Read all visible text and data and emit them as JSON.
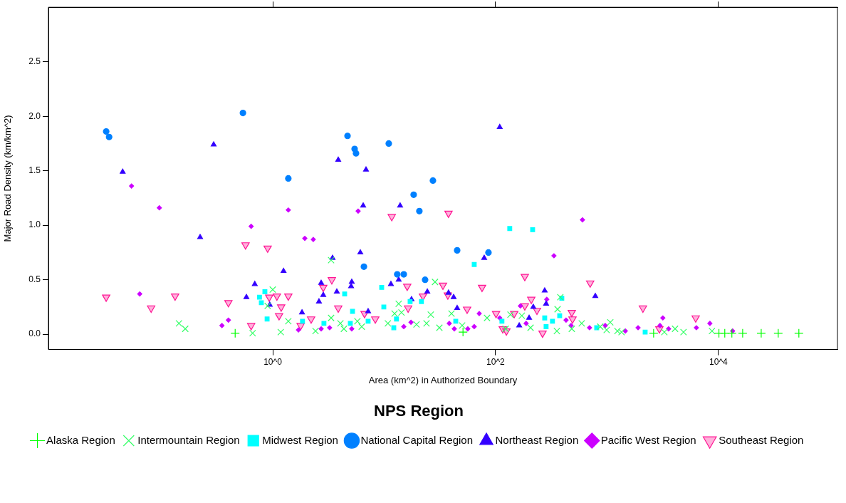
{
  "chart_data": {
    "type": "scatter",
    "xlabel": "Area (km^2) in Authorized Boundary",
    "ylabel": "Major Road Density (km/km^2)",
    "legend_title": "NPS Region",
    "legend": "bottom",
    "grid": false,
    "log": "x",
    "xlim": [
      0.0097,
      117000
    ],
    "xticks": [
      {
        "value": 1,
        "label": "10^0"
      },
      {
        "value": 100,
        "label": "10^2"
      },
      {
        "value": 10000,
        "label": "10^4"
      }
    ],
    "ylim": [
      -0.14,
      3.0
    ],
    "yticks": [
      {
        "value": 0,
        "label": "0.0"
      },
      {
        "value": 0.5,
        "label": "0.5"
      },
      {
        "value": 1,
        "label": "1.0"
      },
      {
        "value": 1.5,
        "label": "1.5"
      },
      {
        "value": 2,
        "label": "2.0"
      },
      {
        "value": 2.5,
        "label": "2.5"
      }
    ],
    "series": [
      {
        "name": "Alaska Region",
        "color": "#00ff00",
        "marker": "cross",
        "x": [
          0.46,
          51,
          2620,
          10100,
          11400,
          13200,
          16500,
          24200,
          34400,
          52700
        ],
        "values": [
          0.01,
          0.02,
          0.01,
          0.01,
          0.01,
          0.01,
          0.01,
          0.01,
          0.01,
          0.01
        ]
      },
      {
        "name": "Intermountain Region",
        "color": "#33ff66",
        "marker": "x",
        "x": [
          0.144,
          0.164,
          0.66,
          1.0,
          0.9,
          1.18,
          3.34,
          28.6,
          13.5,
          12.4,
          14.3,
          26.2,
          1.38,
          3.34,
          4.05,
          5.75,
          10.8,
          19.5,
          24.0,
          2.42,
          4.35,
          6.29,
          40.2,
          83.8,
          360,
          381,
          172,
          136,
          50.1,
          31.3,
          123,
          206,
          355,
          483,
          593,
          1070,
          993,
          1240,
          1350,
          3270,
          4080,
          4860,
          8750,
          869
        ],
        "values": [
          0.1,
          0.05,
          0.01,
          0.41,
          0.26,
          0.02,
          0.68,
          0.48,
          0.28,
          0.19,
          0.2,
          0.18,
          0.12,
          0.15,
          0.1,
          0.12,
          0.1,
          0.09,
          0.1,
          0.03,
          0.05,
          0.07,
          0.19,
          0.15,
          0.23,
          0.34,
          0.17,
          0.18,
          0.08,
          0.06,
          0.05,
          0.06,
          0.03,
          0.05,
          0.1,
          0.11,
          0.04,
          0.03,
          0.02,
          0.02,
          0.05,
          0.02,
          0.03,
          0.07
        ]
      },
      {
        "name": "Midwest Region",
        "color": "#00ffff",
        "marker": "square",
        "x": [
          0.85,
          0.76,
          0.79,
          0.89,
          4.42,
          9.5,
          9.93,
          5.2,
          21.6,
          17.1,
          1.85,
          2.88,
          4.97,
          7.18,
          12.9,
          12.2,
          134,
          215,
          64.3,
          393,
          43.9,
          114,
          276,
          324,
          376,
          284,
          808,
          2200
        ],
        "values": [
          0.39,
          0.34,
          0.29,
          0.14,
          0.37,
          0.43,
          0.25,
          0.21,
          0.3,
          0.3,
          0.12,
          0.1,
          0.1,
          0.12,
          0.14,
          0.06,
          0.97,
          0.96,
          0.64,
          0.33,
          0.12,
          0.12,
          0.15,
          0.12,
          0.17,
          0.07,
          0.06,
          0.02
        ]
      },
      {
        "name": "National Capital Region",
        "color": "#0080ff",
        "marker": "circle",
        "x": [
          0.032,
          0.034,
          0.54,
          1.38,
          4.69,
          5.43,
          5.59,
          11.0,
          27.4,
          18.4,
          20.7,
          6.58,
          13.1,
          15.0,
          23.3,
          45.2,
          86.3
        ],
        "values": [
          1.86,
          1.81,
          2.03,
          1.43,
          1.82,
          1.7,
          1.66,
          1.75,
          1.41,
          1.28,
          1.13,
          0.62,
          0.55,
          0.55,
          0.5,
          0.77,
          0.75
        ]
      },
      {
        "name": "Northeast Region",
        "color": "#3300ff",
        "marker": "triangle",
        "x": [
          0.295,
          0.045,
          0.223,
          1.25,
          0.69,
          0.58,
          0.94,
          3.87,
          6.87,
          6.48,
          13.9,
          3.44,
          6.11,
          2.72,
          2.84,
          3.76,
          5.12,
          5.05,
          2.6,
          11.5,
          13.5,
          17.6,
          24.4,
          1.83,
          7.18,
          109,
          79.0,
          37.8,
          42.0,
          45.2,
          276,
          284,
          218,
          200,
          163,
          785
        ],
        "values": [
          1.74,
          1.49,
          0.89,
          0.58,
          0.46,
          0.34,
          0.27,
          1.6,
          1.51,
          1.18,
          1.18,
          0.7,
          0.75,
          0.47,
          0.36,
          0.39,
          0.48,
          0.44,
          0.3,
          0.46,
          0.5,
          0.32,
          0.39,
          0.2,
          0.21,
          1.9,
          0.7,
          0.38,
          0.34,
          0.24,
          0.4,
          0.28,
          0.25,
          0.15,
          0.08,
          0.35
        ]
      },
      {
        "name": "Pacific West Region",
        "color": "#cc00ff",
        "marker": "diamond",
        "x": [
          0.054,
          0.096,
          0.64,
          0.064,
          0.4,
          0.35,
          1.38,
          1.94,
          2.31,
          5.84,
          1.7,
          2.72,
          3.24,
          5.12,
          15.0,
          17.4,
          602,
          334,
          288,
          167,
          71.3,
          109,
          188,
          429,
          38.4,
          42.6,
          56.3,
          64.3,
          476,
          697,
          3170,
          8380,
          6340,
          964,
          1900,
          2990,
          3570,
          13400,
          1460
        ],
        "values": [
          1.36,
          1.16,
          0.99,
          0.37,
          0.13,
          0.08,
          1.14,
          0.88,
          0.87,
          1.13,
          0.04,
          0.05,
          0.06,
          0.05,
          0.07,
          0.11,
          1.05,
          0.72,
          0.32,
          0.26,
          0.19,
          0.15,
          0.1,
          0.13,
          0.1,
          0.05,
          0.05,
          0.07,
          0.08,
          0.06,
          0.15,
          0.1,
          0.06,
          0.08,
          0.06,
          0.08,
          0.05,
          0.03,
          0.03
        ]
      },
      {
        "name": "Southeast Region",
        "color": "#ff1493",
        "marker": "triangle-down",
        "x": [
          0.032,
          0.081,
          0.133,
          0.57,
          0.9,
          0.4,
          0.64,
          0.93,
          1.09,
          1.19,
          1.14,
          11.7,
          3.39,
          2.84,
          1.38,
          3.87,
          16.1,
          22.3,
          16.4,
          2.21,
          6.67,
          8.32,
          1.78,
          37.8,
          183,
          75.6,
          33.7,
          37.3,
          209,
          183,
          235,
          55.5,
          101,
          147,
          483,
          490,
          116,
          125,
          264,
          706,
          2100,
          6250,
          2950
        ],
        "values": [
          0.34,
          0.24,
          0.35,
          0.82,
          0.79,
          0.29,
          0.08,
          0.34,
          0.35,
          0.25,
          0.17,
          1.08,
          0.5,
          0.43,
          0.35,
          0.24,
          0.44,
          0.35,
          0.24,
          0.14,
          0.19,
          0.14,
          0.08,
          1.11,
          0.53,
          0.43,
          0.45,
          0.36,
          0.32,
          0.26,
          0.22,
          0.23,
          0.19,
          0.19,
          0.2,
          0.14,
          0.05,
          0.03,
          0.01,
          0.47,
          0.24,
          0.15,
          0.05
        ]
      }
    ]
  }
}
